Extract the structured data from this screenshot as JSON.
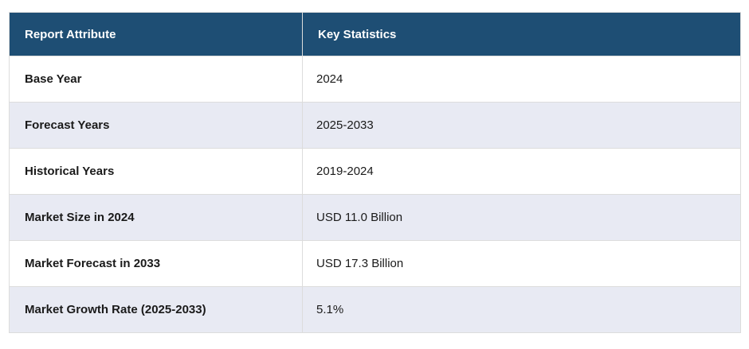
{
  "table": {
    "columns": [
      {
        "label": "Report Attribute"
      },
      {
        "label": "Key Statistics"
      }
    ],
    "rows": [
      {
        "attribute": "Base Year",
        "value": "2024"
      },
      {
        "attribute": "Forecast Years",
        "value": "2025-2033"
      },
      {
        "attribute": "Historical Years",
        "value": "2019-2024"
      },
      {
        "attribute": "Market Size in 2024",
        "value": "USD 11.0 Billion"
      },
      {
        "attribute": "Market Forecast in 2033",
        "value": "USD 17.3 Billion"
      },
      {
        "attribute": "Market Growth Rate (2025-2033)",
        "value": "5.1%"
      }
    ],
    "colors": {
      "header_bg": "#1E4E74",
      "header_text": "#FFFFFF",
      "row_bg": "#FFFFFF",
      "row_alt_bg": "#E8EAF3",
      "border": "#DCDCDC",
      "body_text": "#1A1A1A"
    }
  }
}
